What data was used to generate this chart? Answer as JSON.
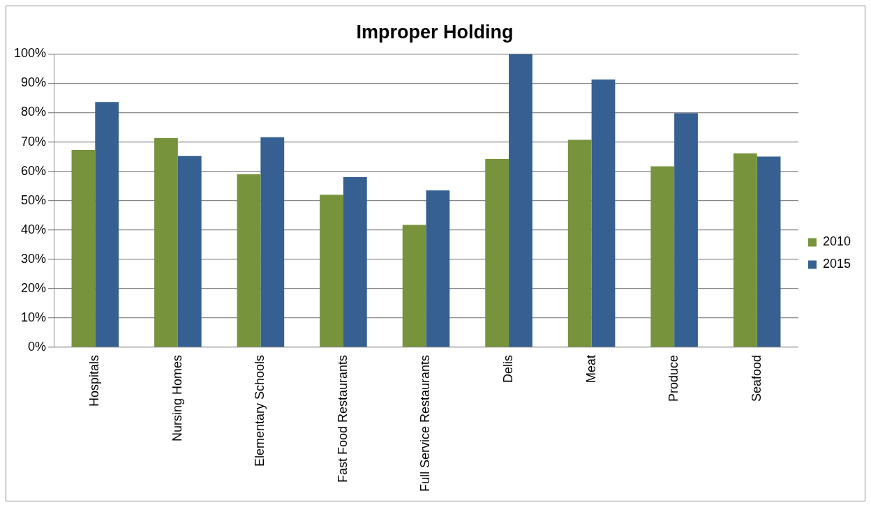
{
  "chart_data": {
    "type": "bar",
    "title": "Improper Holding",
    "categories": [
      "Hospitals",
      "Nursing Homes",
      "Elementary Schools",
      "Fast Food Restaurants",
      "Full Service Restaurants",
      "Delis",
      "Meat",
      "Produce",
      "Seafood"
    ],
    "series": [
      {
        "name": "2010",
        "color": "#77933c",
        "values": [
          67.3,
          71.3,
          59.0,
          52.0,
          41.7,
          64.2,
          70.7,
          61.7,
          66.1
        ]
      },
      {
        "name": "2015",
        "color": "#366092",
        "values": [
          83.6,
          65.2,
          71.6,
          58.0,
          53.5,
          100,
          91.3,
          79.8,
          65.0
        ]
      }
    ],
    "ylim": [
      0,
      100
    ],
    "yticks": [
      {
        "value": 0,
        "label": "0%"
      },
      {
        "value": 10,
        "label": "10%"
      },
      {
        "value": 20,
        "label": "20%"
      },
      {
        "value": 30,
        "label": "30%"
      },
      {
        "value": 40,
        "label": "40%"
      },
      {
        "value": 50,
        "label": "50%"
      },
      {
        "value": 60,
        "label": "60%"
      },
      {
        "value": 70,
        "label": "70%"
      },
      {
        "value": 80,
        "label": "80%"
      },
      {
        "value": 90,
        "label": "90%"
      },
      {
        "value": 100,
        "label": "100%"
      }
    ],
    "grid": "y",
    "legend": "right"
  }
}
